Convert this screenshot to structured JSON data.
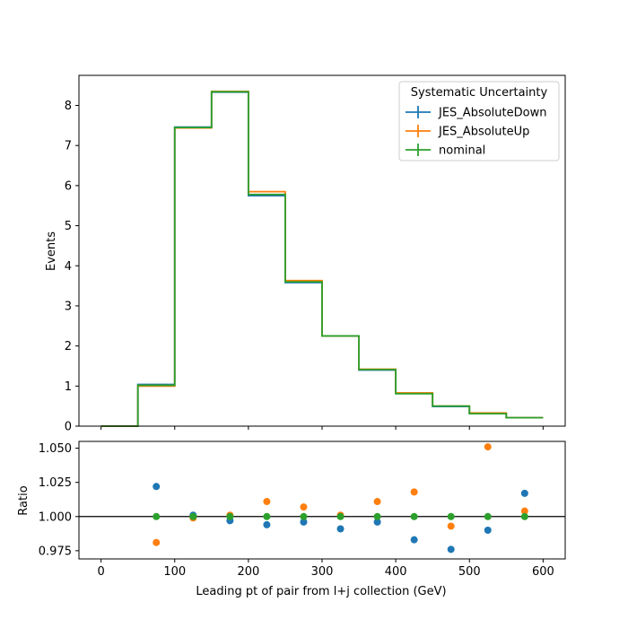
{
  "chart_data": [
    {
      "type": "step",
      "ylabel": "Events",
      "xlim": [
        -30,
        630
      ],
      "ylim": [
        0,
        8.75
      ],
      "bin_edges": [
        0,
        50,
        100,
        150,
        200,
        250,
        300,
        350,
        400,
        450,
        500,
        550,
        600
      ],
      "x_ticks": [
        0,
        100,
        200,
        300,
        400,
        500,
        600
      ],
      "y_ticks": [
        0,
        1,
        2,
        3,
        4,
        5,
        6,
        7,
        8
      ],
      "y_tick_labels": [
        "0",
        "1",
        "2",
        "3",
        "4",
        "5",
        "6",
        "7",
        "8"
      ],
      "legend": {
        "title": "Systematic Uncertainty",
        "placement": "top-right"
      },
      "series": [
        {
          "name": "JES_AbsoluteDown",
          "color": "#1f77b4",
          "values": [
            0,
            1.04,
            7.46,
            8.33,
            5.75,
            3.58,
            2.25,
            1.4,
            0.82,
            0.49,
            0.31,
            0.21
          ]
        },
        {
          "name": "JES_AbsoluteUp",
          "color": "#ff7f0e",
          "values": [
            0,
            1.0,
            7.44,
            8.35,
            5.85,
            3.63,
            2.25,
            1.42,
            0.83,
            0.5,
            0.33,
            0.21
          ]
        },
        {
          "name": "nominal",
          "color": "#2ca02c",
          "values": [
            0,
            1.02,
            7.45,
            8.34,
            5.78,
            3.6,
            2.25,
            1.41,
            0.81,
            0.5,
            0.31,
            0.21
          ]
        }
      ]
    },
    {
      "type": "scatter",
      "xlabel": "Leading pt of pair from l+j collection (GeV)",
      "ylabel": "Ratio",
      "xlim": [
        -30,
        630
      ],
      "ylim": [
        0.969,
        1.055
      ],
      "reference_line": 1.0,
      "x": [
        75,
        125,
        175,
        225,
        275,
        325,
        375,
        425,
        475,
        525,
        575
      ],
      "x_ticks": [
        0,
        100,
        200,
        300,
        400,
        500,
        600
      ],
      "x_tick_labels": [
        "0",
        "100",
        "200",
        "300",
        "400",
        "500",
        "600"
      ],
      "y_ticks": [
        0.975,
        1.0,
        1.025,
        1.05
      ],
      "y_tick_labels": [
        "0.975",
        "1.000",
        "1.025",
        "1.050"
      ],
      "series": [
        {
          "name": "JES_AbsoluteDown",
          "color": "#1f77b4",
          "values": [
            1.022,
            1.001,
            0.997,
            0.994,
            0.996,
            0.991,
            0.996,
            0.983,
            0.976,
            0.99,
            1.017
          ]
        },
        {
          "name": "JES_AbsoluteUp",
          "color": "#ff7f0e",
          "values": [
            0.981,
            0.999,
            1.001,
            1.011,
            1.007,
            1.001,
            1.011,
            1.018,
            0.993,
            1.051,
            1.004
          ]
        },
        {
          "name": "nominal",
          "color": "#2ca02c",
          "values": [
            1.0,
            1.0,
            1.0,
            1.0,
            1.0,
            1.0,
            1.0,
            1.0,
            1.0,
            1.0,
            1.0
          ]
        }
      ]
    }
  ]
}
